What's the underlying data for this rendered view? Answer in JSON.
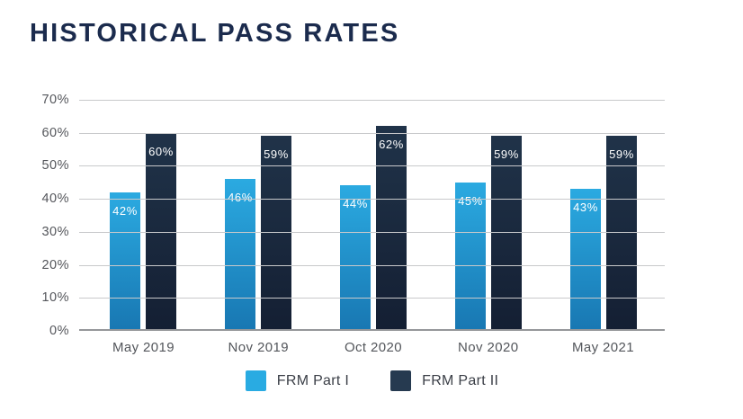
{
  "title": "HISTORICAL PASS RATES",
  "chart_data": {
    "type": "bar",
    "title": "HISTORICAL PASS RATES",
    "categories": [
      "May 2019",
      "Nov 2019",
      "Oct 2020",
      "Nov 2020",
      "May 2021"
    ],
    "series": [
      {
        "name": "FRM Part I",
        "values": [
          42,
          46,
          44,
          45,
          43
        ],
        "color_top": "#2BAAE1",
        "color_bottom": "#1877B2",
        "legend_color": "#29ABE2"
      },
      {
        "name": "FRM Part II",
        "values": [
          60,
          59,
          62,
          59,
          59
        ],
        "color_top": "#203349",
        "color_bottom": "#141F33",
        "legend_color": "#263A50"
      }
    ],
    "value_suffix": "%",
    "ylim": [
      0,
      70
    ],
    "yticks": [
      "70%",
      "60%",
      "50%",
      "40%",
      "30%",
      "20%",
      "10%",
      "0%"
    ],
    "grid": true,
    "legend_position": "bottom",
    "colors": {
      "title_text": "#1B2B4D",
      "axis_text": "#54565B",
      "gridline": "#C8C9CB",
      "axis_line": "#95979A",
      "bar_label_text": "#FFFFFF"
    }
  }
}
